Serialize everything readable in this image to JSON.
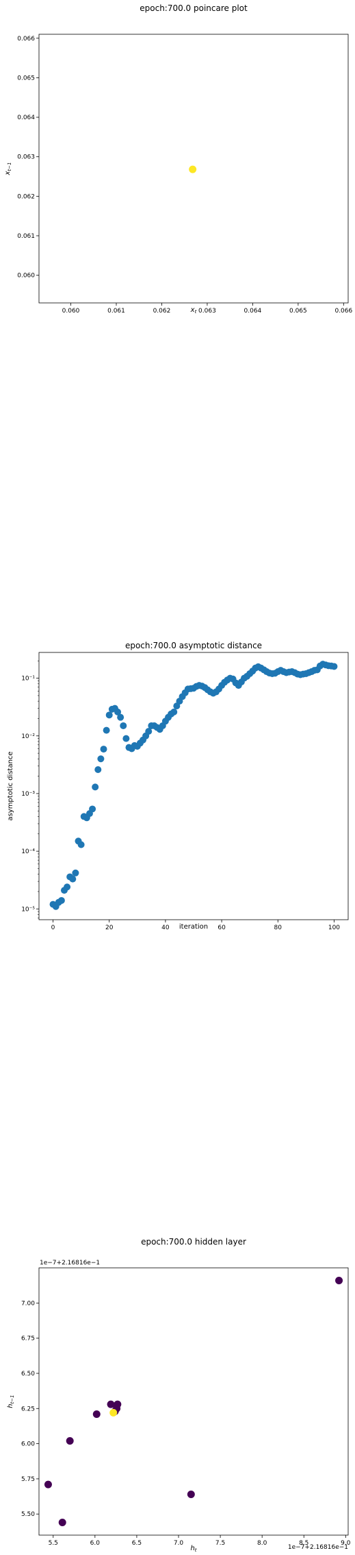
{
  "chart_data": [
    {
      "type": "scatter",
      "title": "epoch:700.0 poincare plot",
      "xlabel": "x_t",
      "ylabel": "x_{t-1}",
      "xlim": [
        0.0593,
        0.0661
      ],
      "ylim": [
        0.0593,
        0.0661
      ],
      "xticks": [
        "0.060",
        "0.061",
        "0.062",
        "0.063",
        "0.064",
        "0.065",
        "0.066"
      ],
      "xtick_values": [
        0.06,
        0.061,
        0.062,
        0.063,
        0.064,
        0.065,
        0.066
      ],
      "yticks": [
        "0.060",
        "0.061",
        "0.062",
        "0.063",
        "0.064",
        "0.065",
        "0.066"
      ],
      "ytick_values": [
        0.06,
        0.061,
        0.062,
        0.063,
        0.064,
        0.065,
        0.066
      ],
      "points": [
        {
          "x": 0.06268,
          "y": 0.06268,
          "color": "#fde725"
        }
      ]
    },
    {
      "type": "scatter",
      "title": "epoch:700.0 asymptotic distance",
      "xlabel": "iteration",
      "ylabel": "asymptotic distance",
      "xlim": [
        -5,
        105
      ],
      "ylim": [
        6.5e-06,
        0.28
      ],
      "yscale": "log",
      "xticks": [
        "0",
        "20",
        "40",
        "60",
        "80",
        "100"
      ],
      "xtick_values": [
        0,
        20,
        40,
        60,
        80,
        100
      ],
      "yticks": [
        "10⁻⁵",
        "10⁻⁴",
        "10⁻³",
        "10⁻²",
        "10⁻¹"
      ],
      "ytick_values": [
        1e-05,
        0.0001,
        0.001,
        0.01,
        0.1
      ],
      "color": "#1f77b4",
      "values": [
        1.2e-05,
        1.1e-05,
        1.3e-05,
        1.4e-05,
        2.1e-05,
        2.4e-05,
        3.6e-05,
        3.3e-05,
        4.2e-05,
        0.00015,
        0.00013,
        0.0004,
        0.00038,
        0.00045,
        0.00054,
        0.0013,
        0.0026,
        0.004,
        0.0059,
        0.0125,
        0.023,
        0.029,
        0.03,
        0.026,
        0.021,
        0.015,
        0.009,
        0.0063,
        0.006,
        0.0068,
        0.0066,
        0.0075,
        0.0085,
        0.01,
        0.012,
        0.015,
        0.015,
        0.014,
        0.013,
        0.015,
        0.018,
        0.021,
        0.024,
        0.026,
        0.033,
        0.04,
        0.048,
        0.056,
        0.065,
        0.066,
        0.067,
        0.072,
        0.075,
        0.073,
        0.069,
        0.063,
        0.058,
        0.055,
        0.058,
        0.065,
        0.075,
        0.085,
        0.093,
        0.1,
        0.097,
        0.083,
        0.075,
        0.086,
        0.1,
        0.108,
        0.12,
        0.133,
        0.15,
        0.158,
        0.15,
        0.14,
        0.13,
        0.123,
        0.12,
        0.122,
        0.13,
        0.137,
        0.13,
        0.125,
        0.128,
        0.13,
        0.125,
        0.118,
        0.115,
        0.118,
        0.12,
        0.125,
        0.13,
        0.137,
        0.14,
        0.163,
        0.175,
        0.17,
        0.165,
        0.163,
        0.16
      ]
    },
    {
      "type": "scatter",
      "title": "epoch:700.0 hidden layer",
      "xlabel": "h_t",
      "ylabel": "h_{t-1}",
      "x_offset_text": "1e−7+2.16816e−1",
      "y_offset_text": "1e−7+2.16816e−1",
      "xlim": [
        5.33,
        9.03
      ],
      "ylim": [
        5.35,
        7.25
      ],
      "xticks": [
        "5.5",
        "6.0",
        "6.5",
        "7.0",
        "7.5",
        "8.0",
        "8.5",
        "9.0"
      ],
      "xtick_values": [
        5.5,
        6.0,
        6.5,
        7.0,
        7.5,
        8.0,
        8.5,
        9.0
      ],
      "yticks": [
        "5.50",
        "5.75",
        "6.00",
        "6.25",
        "6.50",
        "6.75",
        "7.00"
      ],
      "ytick_values": [
        5.5,
        5.75,
        6.0,
        6.25,
        6.5,
        6.75,
        7.0
      ],
      "points": [
        {
          "x": 8.92,
          "y": 7.16,
          "color": "#440154"
        },
        {
          "x": 7.15,
          "y": 5.64,
          "color": "#440154"
        },
        {
          "x": 5.44,
          "y": 5.71,
          "color": "#440154"
        },
        {
          "x": 5.61,
          "y": 5.44,
          "color": "#440154"
        },
        {
          "x": 5.7,
          "y": 6.02,
          "color": "#440154"
        },
        {
          "x": 6.02,
          "y": 6.21,
          "color": "#440154"
        },
        {
          "x": 6.19,
          "y": 6.28,
          "color": "#440154"
        },
        {
          "x": 6.27,
          "y": 6.28,
          "color": "#440154"
        },
        {
          "x": 6.26,
          "y": 6.25,
          "color": "#440154"
        },
        {
          "x": 6.24,
          "y": 6.23,
          "color": "#440154"
        },
        {
          "x": 6.22,
          "y": 6.22,
          "color": "#fde725"
        }
      ]
    }
  ]
}
